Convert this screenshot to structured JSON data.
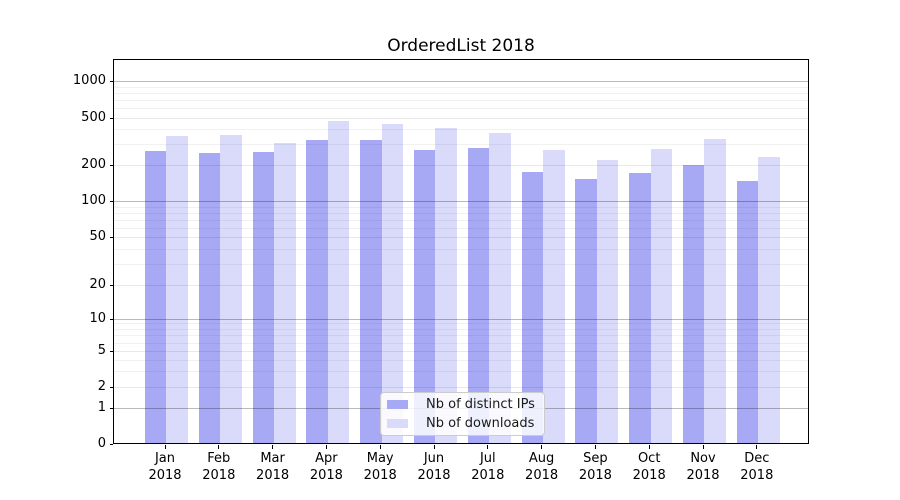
{
  "title": "OrderedList 2018",
  "chart_data": {
    "type": "bar",
    "title": "OrderedList 2018",
    "categories": [
      "Jan 2018",
      "Feb 2018",
      "Mar 2018",
      "Apr 2018",
      "May 2018",
      "Jun 2018",
      "Jul 2018",
      "Aug 2018",
      "Sep 2018",
      "Oct 2018",
      "Nov 2018",
      "Dec 2018"
    ],
    "series": [
      {
        "name": "Nb of distinct IPs",
        "color": "#a8a9f5",
        "values": [
          262,
          250,
          256,
          322,
          322,
          268,
          276,
          175,
          152,
          171,
          202,
          147
        ]
      },
      {
        "name": "Nb of downloads",
        "color": "#dadbfa",
        "values": [
          348,
          360,
          308,
          468,
          438,
          412,
          370,
          266,
          220,
          270,
          333,
          232
        ]
      }
    ],
    "xlabel": "",
    "ylabel": "",
    "y_axis": {
      "scale": "symlog",
      "ticks": [
        0,
        1,
        2,
        5,
        10,
        20,
        50,
        100,
        200,
        500,
        1000
      ],
      "range": [
        0,
        1200
      ]
    },
    "grid": true,
    "legend_position": "lower center"
  },
  "legend": {
    "items": [
      {
        "label": "Nb of distinct IPs",
        "color": "#a8a9f5"
      },
      {
        "label": "Nb of downloads",
        "color": "#dadbfa"
      }
    ]
  }
}
